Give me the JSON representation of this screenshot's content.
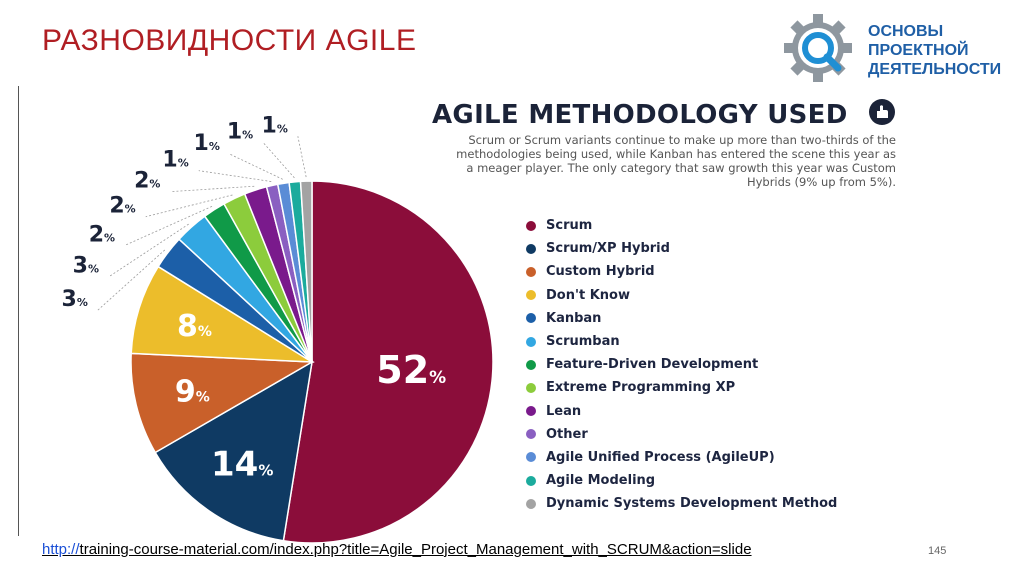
{
  "slide": {
    "title": "РАЗНОВИДНОСТИ AGILE",
    "page_number": "145",
    "link_prefix": "http://",
    "link_rest": "training-course-material.com/index.php?title=Agile_Project_Management_with_SCRUM&action=slide"
  },
  "logo": {
    "line1": "ОСНОВЫ",
    "line2": "ПРОЕКТНОЙ",
    "line3": "ДЕЯТЕЛЬНОСТИ",
    "icon": "gear-magnifier-icon",
    "color": "#1f5fa6"
  },
  "chart_data": {
    "type": "pie",
    "title": "AGILE METHODOLOGY USED",
    "subtitle_lines": [
      "Scrum or Scrum variants continue to make up more than two-thirds of the",
      "methodologies being used, while Kanban has entered the scene this year as",
      "a meager player. The only category that saw growth this year was Custom",
      "Hybrids (9% up from 5%)."
    ],
    "unit": "%",
    "legend_position": "right",
    "slices": [
      {
        "name": "Scrum",
        "value": 52,
        "color": "#8b0d3a"
      },
      {
        "name": "Scrum/XP Hybrid",
        "value": 14,
        "color": "#0f3a63"
      },
      {
        "name": "Custom Hybrid",
        "value": 9,
        "color": "#c9602a"
      },
      {
        "name": "Don't Know",
        "value": 8,
        "color": "#ecbd2b"
      },
      {
        "name": "Kanban",
        "value": 3,
        "color": "#1c5fa8"
      },
      {
        "name": "Scrumban",
        "value": 3,
        "color": "#32a7e2"
      },
      {
        "name": "Feature-Driven Development",
        "value": 2,
        "color": "#109a48"
      },
      {
        "name": "Extreme Programming XP",
        "value": 2,
        "color": "#8ccc3c"
      },
      {
        "name": "Lean",
        "value": 2,
        "color": "#7a1a8c"
      },
      {
        "name": "Other",
        "value": 1,
        "color": "#8a5fc1"
      },
      {
        "name": "Agile Unified Process (AgileUP)",
        "value": 1,
        "color": "#5a8cd6"
      },
      {
        "name": "Agile Modeling",
        "value": 1,
        "color": "#1bab9d"
      },
      {
        "name": "Dynamic Systems Development Method",
        "value": 1,
        "color": "#a3a3a3"
      }
    ]
  }
}
